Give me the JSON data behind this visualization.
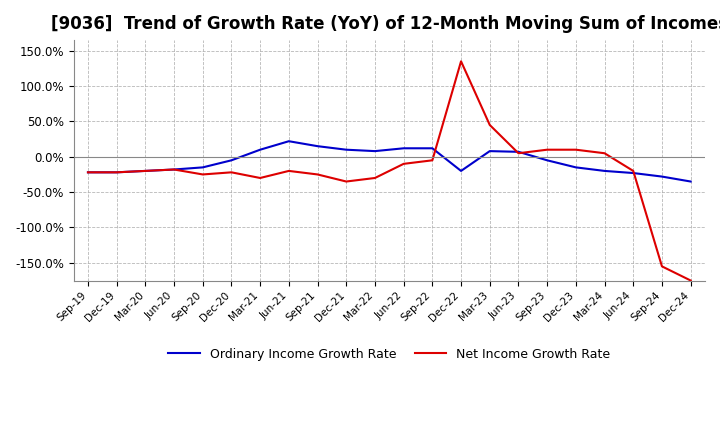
{
  "title": "[9036]  Trend of Growth Rate (YoY) of 12-Month Moving Sum of Incomes",
  "title_fontsize": 12,
  "ylim": [
    -175,
    165
  ],
  "yticks": [
    150,
    100,
    50,
    0,
    -50,
    -100,
    -150
  ],
  "ytick_labels": [
    "150.0%",
    "100.0%",
    "50.0%",
    "0.0%",
    "-50.0%",
    "-100.0%",
    "-150.0%"
  ],
  "background_color": "#ffffff",
  "grid_color": "#b0b0b0",
  "ordinary_color": "#0000cc",
  "net_color": "#dd0000",
  "legend_labels": [
    "Ordinary Income Growth Rate",
    "Net Income Growth Rate"
  ],
  "x_labels": [
    "Sep-19",
    "Dec-19",
    "Mar-20",
    "Jun-20",
    "Sep-20",
    "Dec-20",
    "Mar-21",
    "Jun-21",
    "Sep-21",
    "Dec-21",
    "Mar-22",
    "Jun-22",
    "Sep-22",
    "Dec-22",
    "Mar-23",
    "Jun-23",
    "Sep-23",
    "Dec-23",
    "Mar-24",
    "Jun-24",
    "Sep-24",
    "Dec-24"
  ],
  "ordinary_income_growth": [
    -22,
    -22,
    -20,
    -18,
    -15,
    -5,
    10,
    22,
    15,
    10,
    8,
    12,
    12,
    -20,
    8,
    7,
    -5,
    -15,
    -20,
    -23,
    -28,
    -35
  ],
  "net_income_growth": [
    -22,
    -22,
    -20,
    -18,
    -25,
    -22,
    -30,
    -20,
    -25,
    -35,
    -30,
    -10,
    -5,
    135,
    45,
    5,
    10,
    10,
    5,
    -20,
    -155,
    -175
  ]
}
